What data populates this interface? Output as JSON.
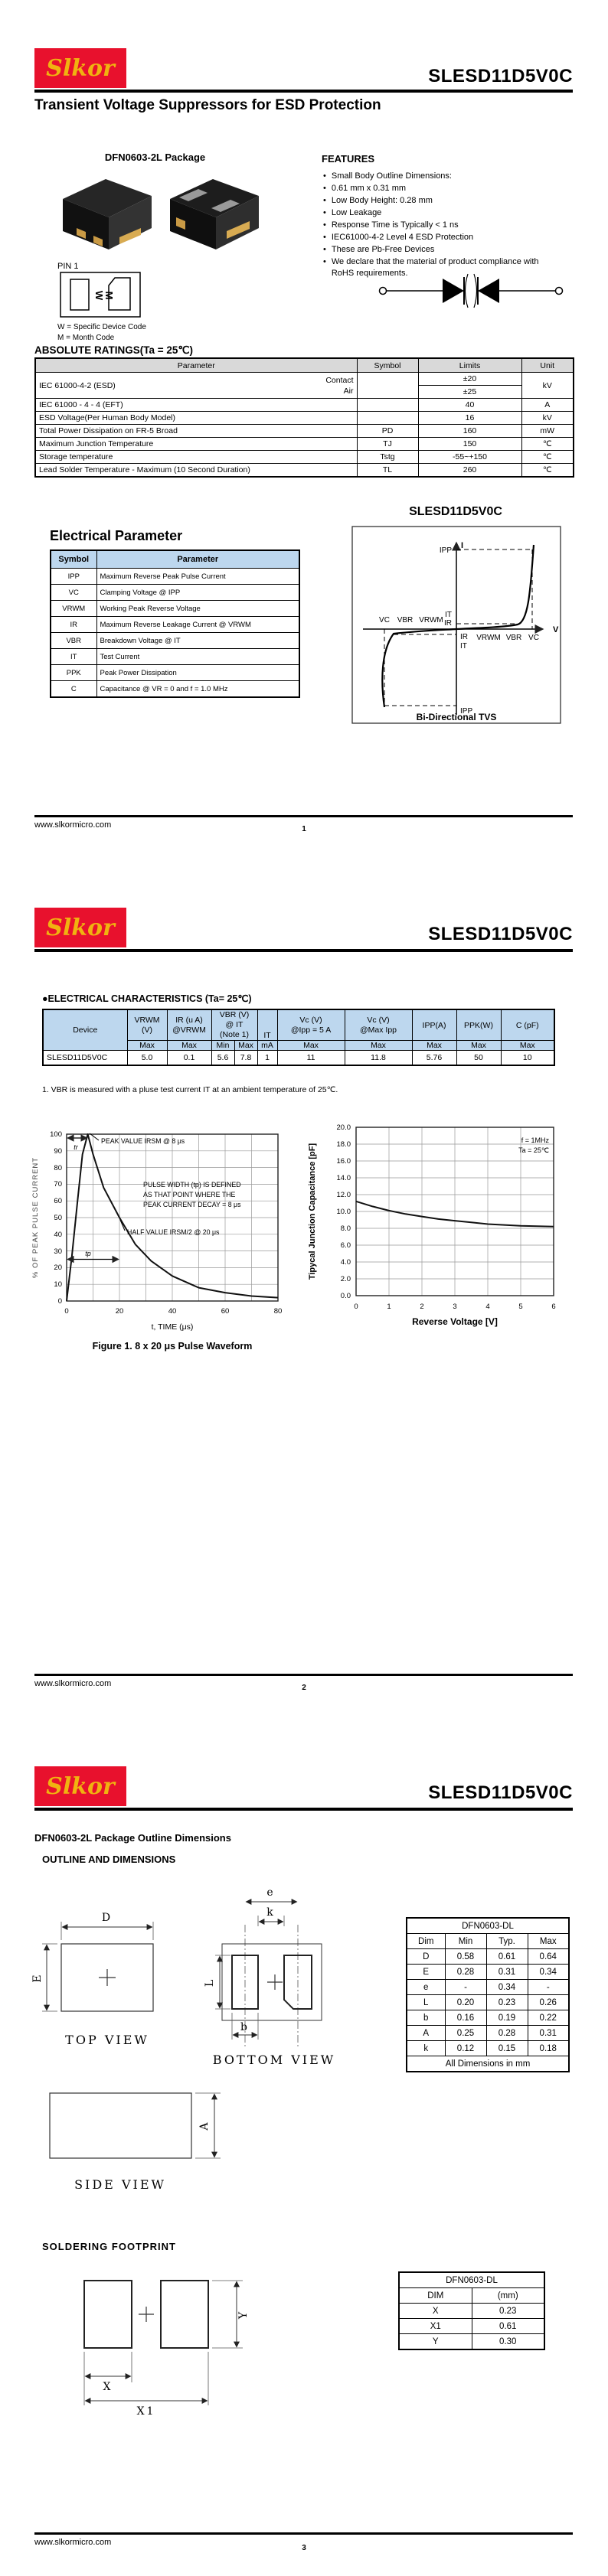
{
  "doc": {
    "brand": "Slkor",
    "part": "SLESD11D5V0C",
    "subtitle": "Transient Voltage Suppressors for ESD Protection",
    "website": "www.slkormicro.com"
  },
  "page1": {
    "page_num": "1",
    "package_title": "DFN0603-2L Package",
    "pin1": "PIN 1",
    "marking": {
      "w": "W",
      "m": "M",
      "legend_w": "W  = Specific Device Code",
      "legend_m": "M  = Month Code"
    },
    "features": {
      "title": "FEATURES",
      "items": [
        "Small Body Outline Dimensions:",
        "0.61 mm x 0.31 mm",
        "Low Body Height: 0.28 mm",
        "Low Leakage",
        "Response Time is Typically < 1 ns",
        "IEC61000-4-2 Level 4 ESD Protection",
        "These are Pb-Free Devices",
        "We declare that the material of product compliance with RoHS requirements."
      ]
    },
    "abs": {
      "title": "ABSOLUTE RATINGS(Ta = 25℃)",
      "headers": [
        "Parameter",
        "Symbol",
        "Limits",
        "Unit"
      ],
      "esd": {
        "param": "IEC 61000-4-2 (ESD)",
        "c1": "Contact",
        "c2": "Air",
        "l1": "±20",
        "l2": "±25",
        "unit": "kV"
      },
      "rows": [
        {
          "param": "IEC 61000 - 4 - 4 (EFT)",
          "symbol": "",
          "limit": "40",
          "unit": "A"
        },
        {
          "param": "ESD Voltage(Per Human Body Model)",
          "symbol": "",
          "limit": "16",
          "unit": "kV"
        },
        {
          "param": "Total Power Dissipation on FR-5 Broad",
          "symbol": "PD",
          "limit": "160",
          "unit": "mW"
        },
        {
          "param": "Maximum Junction Temperature",
          "symbol": "TJ",
          "limit": "150",
          "unit": "℃"
        },
        {
          "param": "Storage temperature",
          "symbol": "Tstg",
          "limit": "-55~+150",
          "unit": "℃"
        },
        {
          "param": "Lead Solder Temperature - Maximum (10 Second Duration)",
          "symbol": "TL",
          "limit": "260",
          "unit": "℃"
        }
      ]
    },
    "ep": {
      "title": "Electrical Parameter",
      "headers": [
        "Symbol",
        "Parameter"
      ],
      "rows": [
        [
          "IPP",
          "Maximum Reverse Peak Pulse Current"
        ],
        [
          "VC",
          "Clamping Voltage @ IPP"
        ],
        [
          "VRWM",
          "Working Peak Reverse Voltage"
        ],
        [
          "IR",
          "Maximum Reverse Leakage Current @ VRWM"
        ],
        [
          "VBR",
          "Breakdown Voltage @ IT"
        ],
        [
          "IT",
          "Test Current"
        ],
        [
          "PPK",
          "Peak Power Dissipation"
        ],
        [
          "C",
          "Capacitance @ VR = 0 and f = 1.0 MHz"
        ]
      ]
    },
    "iv": {
      "title": "SLESD11D5V0C",
      "caption": "Bi-Directional TVS",
      "v": "V",
      "i": "I",
      "ipp": "IPP",
      "it": "IT",
      "ir": "IR",
      "vc": "VC",
      "vbr": "VBR",
      "vrwm": "VRWM"
    }
  },
  "page2": {
    "page_num": "2",
    "ec": {
      "title": "●ELECTRICAL CHARACTERISTICS (Ta= 25℃)",
      "h": {
        "device": "Device",
        "vrwm": "VRWM\n(V)",
        "ir": "IR (u A)\n@VRWM",
        "vbr": "VBR (V)\n@ IT\n(Note 1)",
        "it": "IT",
        "vc5": "Vc (V)\n@Ipp = 5 A",
        "vcmax": "Vc (V)\n@Max Ipp",
        "ipp": "IPP(A)",
        "ppk": "PPK(W)",
        "c": "C (pF)"
      },
      "sub": [
        "Max",
        "Max",
        "Min",
        "Max",
        "mA",
        "Max",
        "Max",
        "Max",
        "Max",
        "Max"
      ],
      "row": [
        "SLESD11D5V0C",
        "5.0",
        "0.1",
        "5.6",
        "7.8",
        "1",
        "11",
        "11.8",
        "5.76",
        "50",
        "10"
      ],
      "note": "1. VBR is measured with a pluse test current IT at an ambient temperature of 25℃."
    },
    "fig1": {
      "ylabel": "% OF PEAK PULSE CURRENT",
      "xlabel": "t, TIME (μs)",
      "caption": "Figure 1. 8 x 20 μs Pulse Waveform",
      "tr": "tr",
      "tp": "tp",
      "ann_peak": "PEAK VALUE IRSM @ 8 μs",
      "ann_pw1": "PULSE WIDTH (tp) IS DEFINED",
      "ann_pw2": "AS THAT POINT WHERE THE",
      "ann_pw3": "PEAK CURRENT DECAY = 8 μs",
      "ann_half": "HALF VALUE IRSM/2 @ 20 μs",
      "yticks": [
        "100",
        "90",
        "80",
        "70",
        "60",
        "50",
        "40",
        "30",
        "20",
        "10",
        "0"
      ],
      "xticks": [
        "0",
        "20",
        "40",
        "60",
        "80"
      ]
    },
    "cap": {
      "ylabel": "Tipycal Junction Capacitance [pF]",
      "xlabel": "Reverse Voltage [V]",
      "legend1": "f = 1MHz",
      "legend2": "Ta = 25℃",
      "yticks": [
        "20.0",
        "18.0",
        "16.0",
        "14.0",
        "12.0",
        "10.0",
        "8.0",
        "6.0",
        "4.0",
        "2.0",
        "0.0"
      ],
      "xticks": [
        "0",
        "1",
        "2",
        "3",
        "4",
        "5",
        "6"
      ]
    }
  },
  "page3": {
    "page_num": "3",
    "outline_title": "DFN0603-2L Package Outline Dimensions",
    "outline_sub": "OUTLINE AND DIMENSIONS",
    "views": {
      "top": "TOP VIEW",
      "bottom": "BOTTOM VIEW",
      "side": "SIDE VIEW"
    },
    "dims": {
      "D": "D",
      "E": "E",
      "e": "e",
      "k": "k",
      "L": "L",
      "b": "b",
      "A": "A",
      "X": "X",
      "X1": "X1",
      "Y": "Y"
    },
    "dim_table": {
      "title": "DFN0603-DL",
      "headers": [
        "Dim",
        "Min",
        "Typ.",
        "Max"
      ],
      "rows": [
        [
          "D",
          "0.58",
          "0.61",
          "0.64"
        ],
        [
          "E",
          "0.28",
          "0.31",
          "0.34"
        ],
        [
          "e",
          "-",
          "0.34",
          "-"
        ],
        [
          "L",
          "0.20",
          "0.23",
          "0.26"
        ],
        [
          "b",
          "0.16",
          "0.19",
          "0.22"
        ],
        [
          "A",
          "0.25",
          "0.28",
          "0.31"
        ],
        [
          "k",
          "0.12",
          "0.15",
          "0.18"
        ]
      ],
      "footer": "All Dimensions in mm"
    },
    "soldering_title": "SOLDERING  FOOTPRINT",
    "fp_table": {
      "title": "DFN0603-DL",
      "headers": [
        "DIM",
        "(mm)"
      ],
      "rows": [
        [
          "X",
          "0.23"
        ],
        [
          "X1",
          "0.61"
        ],
        [
          "Y",
          "0.30"
        ]
      ]
    }
  },
  "chart_data": [
    {
      "type": "line",
      "title": "Figure 1. 8 x 20 μs Pulse Waveform",
      "xlabel": "t, TIME (μs)",
      "ylabel": "% OF PEAK PULSE CURRENT",
      "xlim": [
        0,
        80
      ],
      "ylim": [
        0,
        100
      ],
      "grid": true,
      "annotations": [
        "PEAK VALUE IRSM @ 8 μs",
        "PULSE WIDTH (tp) IS DEFINED AS THAT POINT WHERE THE PEAK CURRENT DECAY = 8 μs",
        "HALF VALUE IRSM/2 @ 20 μs",
        "tr",
        "tp"
      ],
      "x": [
        0,
        2,
        4,
        6,
        8,
        10,
        14,
        20,
        26,
        32,
        40,
        50,
        60,
        70,
        80
      ],
      "y": [
        0,
        27,
        58,
        88,
        100,
        88,
        68,
        50,
        34,
        24,
        15,
        8,
        5,
        3,
        2
      ]
    },
    {
      "type": "line",
      "title": "",
      "xlabel": "Reverse Voltage [V]",
      "ylabel": "Tipycal Junction Capacitance [pF]",
      "xlim": [
        0,
        6
      ],
      "ylim": [
        0,
        20
      ],
      "grid": true,
      "legend": [
        "f = 1MHz",
        "Ta = 25℃"
      ],
      "legend_position": "top-right",
      "x": [
        0,
        0.5,
        1,
        1.5,
        2,
        2.5,
        3,
        3.5,
        4,
        4.5,
        5,
        5.5,
        6
      ],
      "y": [
        11.2,
        10.6,
        10.1,
        9.7,
        9.4,
        9.1,
        8.9,
        8.7,
        8.5,
        8.4,
        8.3,
        8.25,
        8.2
      ]
    }
  ]
}
